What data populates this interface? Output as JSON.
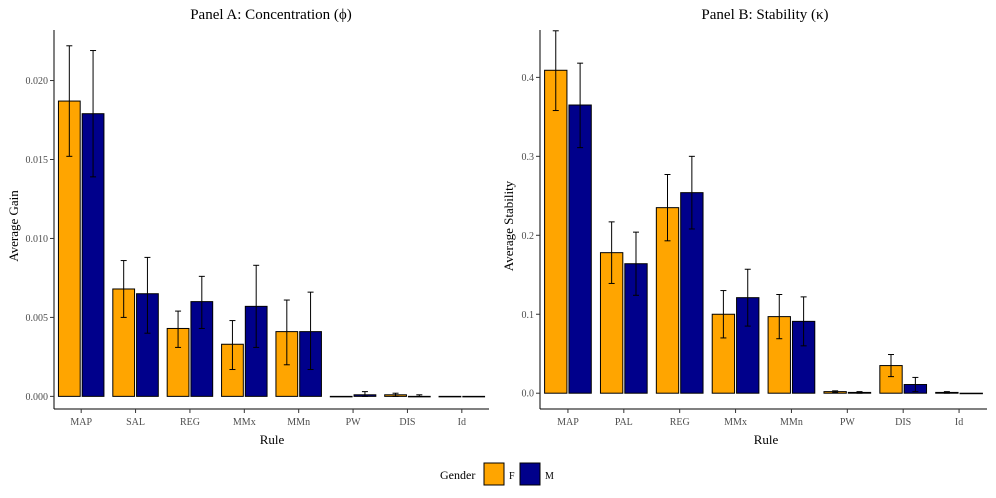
{
  "colors": {
    "F": "#FFA500",
    "M": "#00008B"
  },
  "legend": {
    "title": "Gender",
    "items": [
      {
        "key": "F",
        "label": "F"
      },
      {
        "key": "M",
        "label": "M"
      }
    ]
  },
  "chart_data": [
    {
      "type": "bar",
      "title": "Panel A: Concentration (ϕ)",
      "xlabel": "Rule",
      "ylabel": "Average Gain",
      "ylim": [
        -0.0008,
        0.0232
      ],
      "yticks": [
        0.0,
        0.005,
        0.01,
        0.015,
        0.02
      ],
      "ytick_labels": [
        "0.000",
        "0.005",
        "0.010",
        "0.015",
        "0.020"
      ],
      "categories": [
        "MAP",
        "SAL",
        "REG",
        "MMx",
        "MMn",
        "PW",
        "DIS",
        "Id"
      ],
      "series": [
        {
          "name": "F",
          "values": [
            0.0187,
            0.0068,
            0.0043,
            0.0033,
            0.0041,
            0.0,
            0.0001,
            0.0
          ],
          "err_low": [
            0.0152,
            0.005,
            0.0031,
            0.0017,
            0.002,
            0.0,
            0.0,
            0.0
          ],
          "err_high": [
            0.0222,
            0.0086,
            0.0054,
            0.0048,
            0.0061,
            0.0,
            0.0002,
            0.0
          ]
        },
        {
          "name": "M",
          "values": [
            0.0179,
            0.0065,
            0.006,
            0.0057,
            0.0041,
            0.0001,
            0.0,
            0.0
          ],
          "err_low": [
            0.0139,
            0.004,
            0.0043,
            0.0031,
            0.0017,
            0.0,
            0.0,
            0.0
          ],
          "err_high": [
            0.0219,
            0.0088,
            0.0076,
            0.0083,
            0.0066,
            0.0003,
            0.0001,
            0.0
          ]
        }
      ]
    },
    {
      "type": "bar",
      "title": "Panel B: Stability (κ)",
      "xlabel": "Rule",
      "ylabel": "Average Stability",
      "ylim": [
        -0.02,
        0.46
      ],
      "yticks": [
        0.0,
        0.1,
        0.2,
        0.3,
        0.4
      ],
      "ytick_labels": [
        "0.0",
        "0.1",
        "0.2",
        "0.3",
        "0.4"
      ],
      "categories": [
        "MAP",
        "PAL",
        "REG",
        "MMx",
        "MMn",
        "PW",
        "DIS",
        "Id"
      ],
      "series": [
        {
          "name": "F",
          "values": [
            0.409,
            0.178,
            0.235,
            0.1,
            0.097,
            0.002,
            0.035,
            0.001
          ],
          "err_low": [
            0.358,
            0.139,
            0.193,
            0.07,
            0.069,
            0.001,
            0.021,
            0.0
          ],
          "err_high": [
            0.459,
            0.217,
            0.277,
            0.13,
            0.125,
            0.003,
            0.049,
            0.002
          ]
        },
        {
          "name": "M",
          "values": [
            0.365,
            0.164,
            0.254,
            0.121,
            0.091,
            0.001,
            0.011,
            0.0
          ],
          "err_low": [
            0.311,
            0.124,
            0.208,
            0.085,
            0.06,
            0.0,
            0.002,
            0.0
          ],
          "err_high": [
            0.418,
            0.204,
            0.3,
            0.157,
            0.122,
            0.002,
            0.02,
            0.001
          ]
        }
      ]
    }
  ]
}
